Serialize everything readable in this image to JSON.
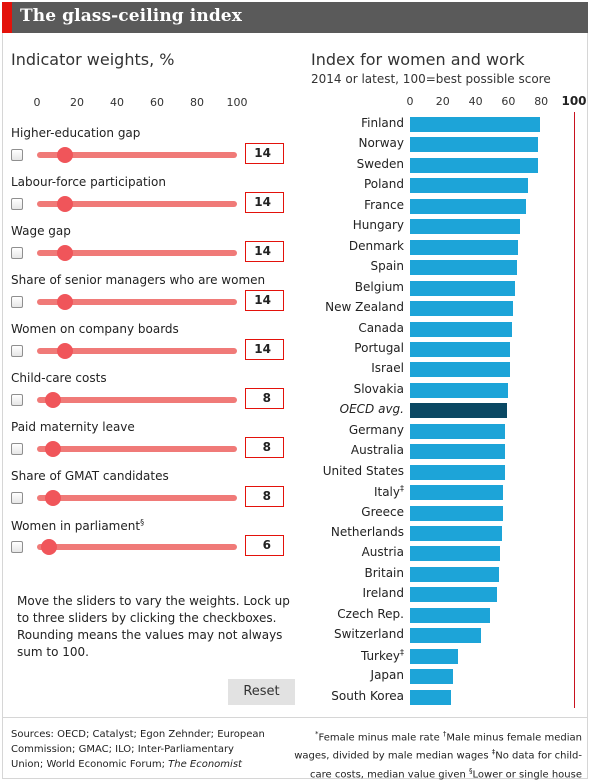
{
  "title": "The glass-ceiling index",
  "left_panel": {
    "title": "Indicator weights, %",
    "ticks": [
      "0",
      "20",
      "40",
      "60",
      "80",
      "100"
    ],
    "indicators": [
      {
        "label": "Higher-education gap",
        "mark": "",
        "weight": 14,
        "value_text": "14",
        "locked": false
      },
      {
        "label": "Labour-force participation",
        "mark": "",
        "weight": 14,
        "value_text": "14",
        "locked": false
      },
      {
        "label": "Wage gap",
        "mark": "",
        "weight": 14,
        "value_text": "14",
        "locked": false
      },
      {
        "label": "Share of senior managers who are women",
        "mark": "",
        "weight": 14,
        "value_text": "14",
        "locked": false
      },
      {
        "label": "Women on company boards",
        "mark": "",
        "weight": 14,
        "value_text": "14",
        "locked": false
      },
      {
        "label": "Child-care costs",
        "mark": "",
        "weight": 8,
        "value_text": "8",
        "locked": false
      },
      {
        "label": "Paid maternity leave",
        "mark": "",
        "weight": 8,
        "value_text": "8",
        "locked": false
      },
      {
        "label": "Share of GMAT candidates",
        "mark": "",
        "weight": 8,
        "value_text": "8",
        "locked": false
      },
      {
        "label": "Women in parliament",
        "mark": "§",
        "weight": 6,
        "value_text": "6",
        "locked": false
      }
    ],
    "help_text": "Move the sliders to vary the weights. Lock up to three sliders by clicking the checkboxes. Rounding means the values may not always sum to 100.",
    "reset_label": "Reset"
  },
  "chart_data": {
    "type": "bar",
    "orientation": "horizontal",
    "title": "Index for women and work",
    "subtitle": "2014 or latest, 100=best possible score",
    "ticks": [
      "0",
      "20",
      "40",
      "60",
      "80"
    ],
    "reference_line": {
      "value": 100,
      "label": "100",
      "color": "#c8121f"
    },
    "xlim": [
      0,
      100
    ],
    "categories": [
      "Finland",
      "Norway",
      "Sweden",
      "Poland",
      "France",
      "Hungary",
      "Denmark",
      "Spain",
      "Belgium",
      "New Zealand",
      "Canada",
      "Portugal",
      "Israel",
      "Slovakia",
      "OECD avg.",
      "Germany",
      "Australia",
      "United States",
      "Italy",
      "Greece",
      "Netherlands",
      "Austria",
      "Britain",
      "Ireland",
      "Czech Rep.",
      "Switzerland",
      "Turkey",
      "Japan",
      "South Korea"
    ],
    "marks": {
      "Italy": "‡",
      "Turkey": "‡"
    },
    "highlight": "OECD avg.",
    "values": [
      79,
      78,
      78,
      72,
      71,
      67,
      66,
      65,
      64,
      63,
      62,
      61,
      61,
      60,
      59,
      58,
      58,
      58,
      57,
      57,
      56,
      55,
      54,
      53,
      49,
      43,
      29,
      26,
      25
    ],
    "colors": {
      "bar": "#1da4d8",
      "highlight": "#0a4863"
    }
  },
  "footer": {
    "sources_prefix": "Sources: OECD; Catalyst; Egon Zehnder; European Commission; GMAC; ILO; Inter-Parliamentary Union; World Economic Forum; ",
    "sources_italic": "The Economist",
    "notes": [
      {
        "mark": "*",
        "text": "Female minus male rate "
      },
      {
        "mark": "†",
        "text": "Male minus female median wages, divided by male median wages "
      },
      {
        "mark": "‡",
        "text": "No data for child-care costs, median value given "
      },
      {
        "mark": "§",
        "text": "Lower or single house"
      }
    ]
  }
}
